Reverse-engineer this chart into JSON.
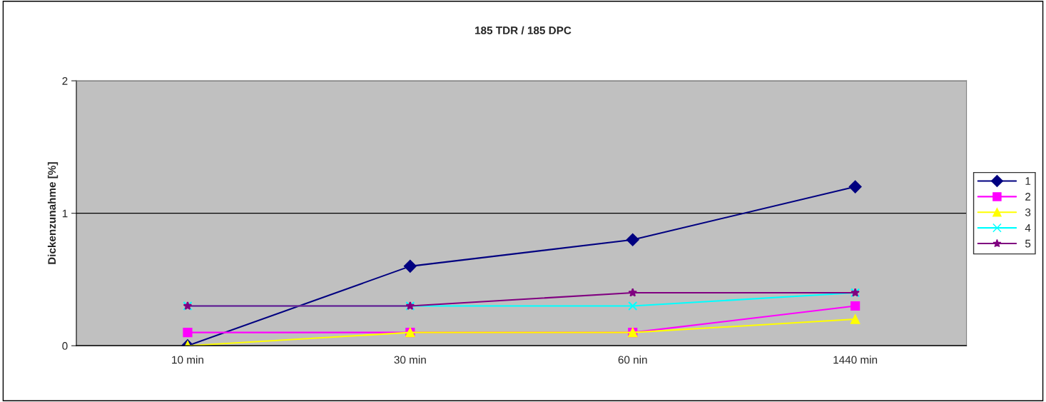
{
  "chart_data": {
    "type": "line",
    "title": "185 TDR / 185 DPC",
    "ylabel": "Dickenzunahme [%]",
    "categories": [
      "10 min",
      "30 min",
      "60 nin",
      "1440 min"
    ],
    "series": [
      {
        "name": "1",
        "color": "#000080",
        "marker": "diamond",
        "values": [
          0,
          0.6,
          0.8,
          1.2
        ]
      },
      {
        "name": "2",
        "color": "#ff00ff",
        "marker": "square",
        "values": [
          0.1,
          0.1,
          0.1,
          0.3
        ]
      },
      {
        "name": "3",
        "color": "#ffff00",
        "marker": "triangle",
        "values": [
          0,
          0.1,
          0.1,
          0.2
        ]
      },
      {
        "name": "4",
        "color": "#00ffff",
        "marker": "cross",
        "values": [
          0.3,
          0.3,
          0.3,
          0.4
        ]
      },
      {
        "name": "5",
        "color": "#800080",
        "marker": "star",
        "values": [
          0.3,
          0.3,
          0.4,
          0.4
        ]
      }
    ],
    "ylim": [
      0,
      2
    ],
    "yticks": [
      0,
      1,
      2
    ],
    "grid": "y",
    "legend": "right",
    "line_style": "solid"
  }
}
